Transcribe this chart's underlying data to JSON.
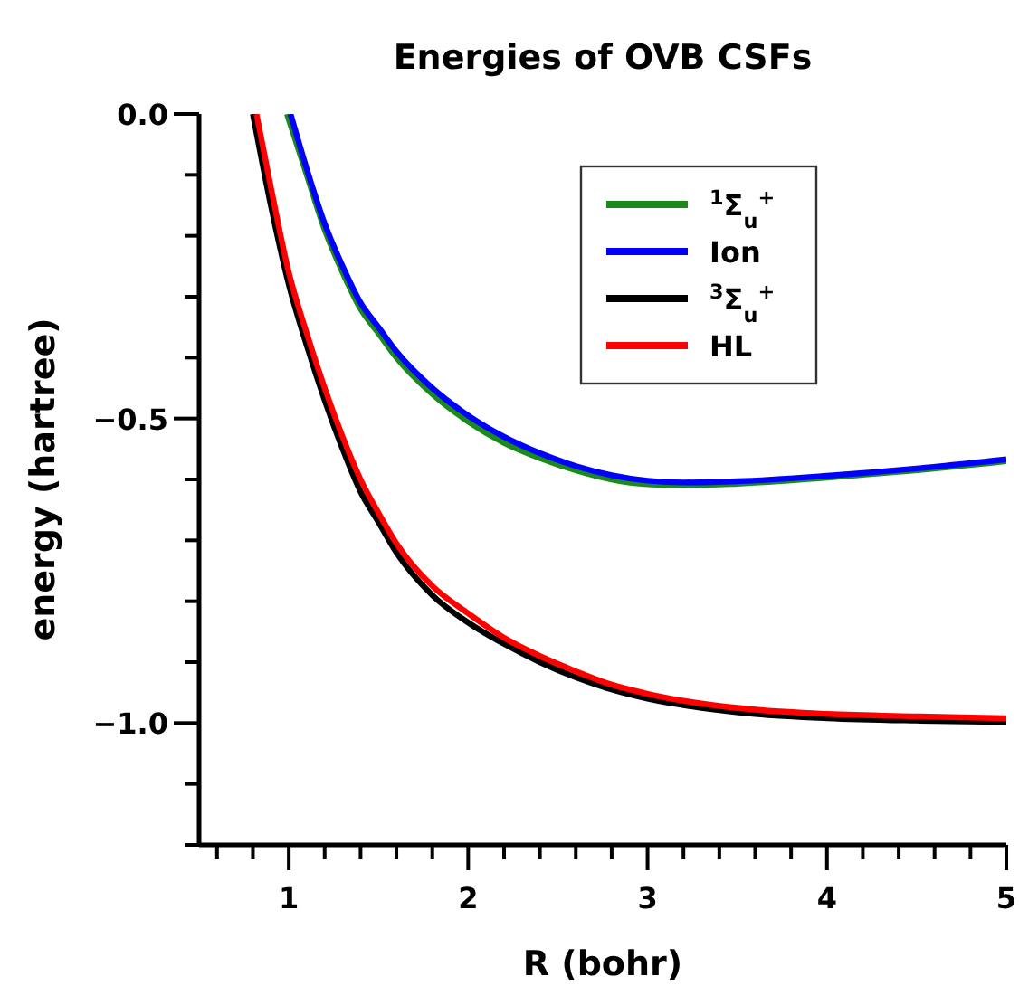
{
  "chart_data": {
    "type": "line",
    "title": "Energies of OVB CSFs",
    "xlabel": "R (bohr)",
    "ylabel": "energy (hartree)",
    "xlim": [
      0.5,
      5
    ],
    "ylim": [
      -1.2,
      0
    ],
    "xticks": [
      {
        "value": 0.6,
        "label": null
      },
      {
        "value": 0.8,
        "label": null
      },
      1,
      {
        "value": 1.2,
        "label": null
      },
      {
        "value": 1.4,
        "label": null
      },
      {
        "value": 1.6,
        "label": null
      },
      {
        "value": 1.8,
        "label": null
      },
      2,
      {
        "value": 2.2,
        "label": null
      },
      {
        "value": 2.4,
        "label": null
      },
      {
        "value": 2.6,
        "label": null
      },
      {
        "value": 2.8,
        "label": null
      },
      3,
      {
        "value": 3.2,
        "label": null
      },
      {
        "value": 3.4,
        "label": null
      },
      {
        "value": 3.6,
        "label": null
      },
      {
        "value": 3.8,
        "label": null
      },
      4,
      {
        "value": 4.2,
        "label": null
      },
      {
        "value": 4.4,
        "label": null
      },
      {
        "value": 4.6,
        "label": null
      },
      {
        "value": 4.8,
        "label": null
      },
      5
    ],
    "yticks": [
      {
        "value": -1.2,
        "label": null
      },
      {
        "value": -1.1,
        "label": null
      },
      {
        "value": -1.0,
        "label": "−1.0"
      },
      {
        "value": -0.9,
        "label": null
      },
      {
        "value": -0.8,
        "label": null
      },
      {
        "value": -0.7,
        "label": null
      },
      {
        "value": -0.6,
        "label": null
      },
      {
        "value": -0.5,
        "label": "−0.5"
      },
      {
        "value": -0.4,
        "label": null
      },
      {
        "value": -0.3,
        "label": null
      },
      {
        "value": -0.2,
        "label": null
      },
      {
        "value": -0.1,
        "label": null
      },
      {
        "value": 0,
        "label": "0.0"
      }
    ],
    "grid": false,
    "legend": "top right",
    "marker": "none",
    "line_style": "solid",
    "series": [
      {
        "name": "$^{1}$Σ$_{u}$$^{+}$",
        "color": "#1a8a1a",
        "x": [
          0.99,
          1.1,
          1.2,
          1.3,
          1.4,
          1.5,
          1.6,
          1.8,
          2.0,
          2.2,
          2.4,
          2.6,
          2.8,
          3.0,
          3.2,
          3.5,
          4.0,
          4.5,
          5.0
        ],
        "values": [
          0,
          -0.1,
          -0.19,
          -0.26,
          -0.32,
          -0.36,
          -0.4,
          -0.46,
          -0.505,
          -0.54,
          -0.565,
          -0.585,
          -0.6,
          -0.608,
          -0.61,
          -0.607,
          -0.597,
          -0.585,
          -0.57
        ]
      },
      {
        "name": "Ion",
        "color": "#0000ff",
        "x": [
          1.01,
          1.1,
          1.2,
          1.3,
          1.4,
          1.5,
          1.6,
          1.8,
          2.0,
          2.2,
          2.4,
          2.6,
          2.8,
          3.0,
          3.2,
          3.5,
          4.0,
          4.5,
          5.0
        ],
        "values": [
          0,
          -0.09,
          -0.18,
          -0.25,
          -0.31,
          -0.35,
          -0.39,
          -0.45,
          -0.495,
          -0.53,
          -0.557,
          -0.578,
          -0.593,
          -0.602,
          -0.605,
          -0.603,
          -0.594,
          -0.582,
          -0.567
        ]
      },
      {
        "name": "$^{3}$Σ$_{u}$$^{+}$",
        "color": "#000000",
        "x": [
          0.8,
          0.9,
          1.0,
          1.1,
          1.2,
          1.3,
          1.4,
          1.5,
          1.6,
          1.8,
          2.0,
          2.2,
          2.4,
          2.6,
          2.8,
          3.0,
          3.3,
          3.6,
          4.0,
          4.5,
          5.0
        ],
        "values": [
          0,
          -0.15,
          -0.28,
          -0.38,
          -0.47,
          -0.55,
          -0.62,
          -0.67,
          -0.72,
          -0.79,
          -0.835,
          -0.87,
          -0.9,
          -0.925,
          -0.945,
          -0.96,
          -0.975,
          -0.985,
          -0.992,
          -0.996,
          -0.998
        ]
      },
      {
        "name": "HL",
        "color": "#ff0000",
        "x": [
          0.82,
          0.9,
          1.0,
          1.1,
          1.2,
          1.3,
          1.4,
          1.5,
          1.6,
          1.8,
          2.0,
          2.2,
          2.4,
          2.6,
          2.8,
          3.0,
          3.3,
          3.6,
          4.0,
          4.5,
          5.0
        ],
        "values": [
          0,
          -0.12,
          -0.26,
          -0.36,
          -0.45,
          -0.53,
          -0.6,
          -0.655,
          -0.705,
          -0.775,
          -0.82,
          -0.86,
          -0.89,
          -0.915,
          -0.937,
          -0.952,
          -0.968,
          -0.978,
          -0.985,
          -0.989,
          -0.992
        ]
      }
    ]
  }
}
